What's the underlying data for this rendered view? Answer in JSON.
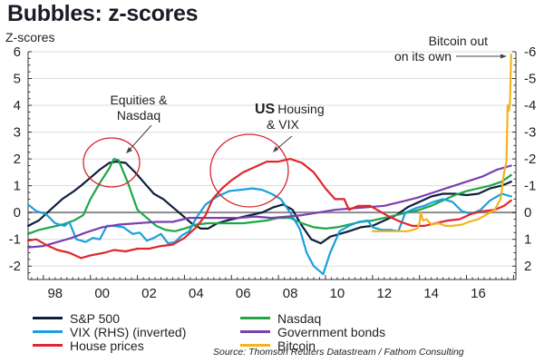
{
  "chart_data": {
    "type": "line",
    "title": "Bubbles: z-scores",
    "ylabel": "Z-scores",
    "ylabel_right": "",
    "xlabel": "",
    "ylim": [
      -2.5,
      6
    ],
    "ylim_right": [
      2.5,
      -6
    ],
    "xlim": [
      1997.35,
      2018.1
    ],
    "yticks": [
      6,
      5,
      4,
      3,
      2,
      1,
      0,
      -1,
      -2
    ],
    "yticks_right": [
      "-6",
      "-5",
      "-4",
      "-3",
      "-2",
      "-1",
      "0",
      "1",
      "2"
    ],
    "xticks": [
      {
        "label": "98",
        "x": 1998.5
      },
      {
        "label": "00",
        "x": 2000.5
      },
      {
        "label": "02",
        "x": 2002.5
      },
      {
        "label": "04",
        "x": 2004.5
      },
      {
        "label": "06",
        "x": 2006.5
      },
      {
        "label": "08",
        "x": 2008.5
      },
      {
        "label": "10",
        "x": 2010.5
      },
      {
        "label": "12",
        "x": 2012.5
      },
      {
        "label": "14",
        "x": 2014.5
      },
      {
        "label": "16",
        "x": 2016.5
      }
    ],
    "grid": true,
    "legend_position": "bottom",
    "source": "Source: Thomson Reuters Datastream / Fathom Consulting",
    "series": [
      {
        "name": "S&P 500",
        "color": "#0f1f3d",
        "points": [
          [
            1997.35,
            -0.5
          ],
          [
            1997.8,
            -0.3
          ],
          [
            1998.3,
            0.1
          ],
          [
            1998.8,
            0.5
          ],
          [
            1999.3,
            0.8
          ],
          [
            1999.6,
            1.0
          ],
          [
            2000.0,
            1.3
          ],
          [
            2000.4,
            1.6
          ],
          [
            2000.8,
            1.85
          ],
          [
            2001.1,
            1.9
          ],
          [
            2001.5,
            1.85
          ],
          [
            2001.9,
            1.5
          ],
          [
            2002.3,
            1.1
          ],
          [
            2002.7,
            0.7
          ],
          [
            2003.1,
            0.5
          ],
          [
            2003.5,
            0.2
          ],
          [
            2003.9,
            -0.1
          ],
          [
            2004.3,
            -0.4
          ],
          [
            2004.7,
            -0.6
          ],
          [
            2005.0,
            -0.6
          ],
          [
            2005.4,
            -0.4
          ],
          [
            2005.8,
            -0.3
          ],
          [
            2006.3,
            -0.2
          ],
          [
            2006.8,
            -0.1
          ],
          [
            2007.3,
            0.0
          ],
          [
            2007.8,
            0.2
          ],
          [
            2008.2,
            0.3
          ],
          [
            2008.6,
            0.1
          ],
          [
            2009.0,
            -0.5
          ],
          [
            2009.4,
            -1.0
          ],
          [
            2009.8,
            -1.15
          ],
          [
            2010.2,
            -0.9
          ],
          [
            2010.6,
            -0.8
          ],
          [
            2011.0,
            -0.7
          ],
          [
            2011.5,
            -0.55
          ],
          [
            2012.0,
            -0.5
          ],
          [
            2012.5,
            -0.3
          ],
          [
            2013.0,
            -0.1
          ],
          [
            2013.5,
            0.2
          ],
          [
            2014.0,
            0.4
          ],
          [
            2014.5,
            0.6
          ],
          [
            2015.0,
            0.7
          ],
          [
            2015.5,
            0.7
          ],
          [
            2016.0,
            0.65
          ],
          [
            2016.5,
            0.7
          ],
          [
            2017.0,
            0.9
          ],
          [
            2017.5,
            1.0
          ],
          [
            2017.9,
            1.15
          ]
        ]
      },
      {
        "name": "Nasdaq",
        "color": "#1fa64a",
        "points": [
          [
            1997.35,
            -0.8
          ],
          [
            1997.8,
            -0.65
          ],
          [
            1998.3,
            -0.55
          ],
          [
            1998.8,
            -0.45
          ],
          [
            1999.3,
            -0.3
          ],
          [
            1999.7,
            -0.1
          ],
          [
            2000.0,
            0.5
          ],
          [
            2000.4,
            1.1
          ],
          [
            2000.8,
            1.65
          ],
          [
            2001.0,
            2.0
          ],
          [
            2001.2,
            1.95
          ],
          [
            2001.6,
            1.1
          ],
          [
            2002.0,
            0.1
          ],
          [
            2002.4,
            -0.2
          ],
          [
            2002.8,
            -0.5
          ],
          [
            2003.2,
            -0.65
          ],
          [
            2003.6,
            -0.7
          ],
          [
            2004.0,
            -0.6
          ],
          [
            2004.5,
            -0.45
          ],
          [
            2005.0,
            -0.4
          ],
          [
            2005.5,
            -0.4
          ],
          [
            2006.0,
            -0.4
          ],
          [
            2006.5,
            -0.4
          ],
          [
            2007.0,
            -0.35
          ],
          [
            2007.5,
            -0.3
          ],
          [
            2008.0,
            -0.2
          ],
          [
            2008.5,
            -0.2
          ],
          [
            2009.0,
            -0.4
          ],
          [
            2009.5,
            -0.55
          ],
          [
            2010.0,
            -0.6
          ],
          [
            2010.5,
            -0.55
          ],
          [
            2011.0,
            -0.45
          ],
          [
            2011.5,
            -0.35
          ],
          [
            2012.0,
            -0.3
          ],
          [
            2012.5,
            -0.2
          ],
          [
            2013.0,
            -0.1
          ],
          [
            2013.5,
            0.0
          ],
          [
            2014.0,
            0.1
          ],
          [
            2014.5,
            0.25
          ],
          [
            2015.0,
            0.45
          ],
          [
            2015.5,
            0.65
          ],
          [
            2016.0,
            0.8
          ],
          [
            2016.5,
            0.9
          ],
          [
            2017.0,
            1.0
          ],
          [
            2017.5,
            1.15
          ],
          [
            2017.9,
            1.4
          ]
        ]
      },
      {
        "name": "VIX (RHS) (inverted)",
        "color": "#1aa0dc",
        "points": [
          [
            1997.35,
            0.3
          ],
          [
            1997.7,
            0.05
          ],
          [
            1998.1,
            -0.05
          ],
          [
            1998.5,
            -0.4
          ],
          [
            1998.9,
            -0.5
          ],
          [
            1999.1,
            -0.35
          ],
          [
            1999.4,
            -1.0
          ],
          [
            1999.8,
            -1.1
          ],
          [
            2000.1,
            -0.95
          ],
          [
            2000.4,
            -1.0
          ],
          [
            2000.7,
            -0.5
          ],
          [
            2001.0,
            -0.5
          ],
          [
            2001.4,
            -0.55
          ],
          [
            2001.8,
            -0.8
          ],
          [
            2002.1,
            -0.75
          ],
          [
            2002.4,
            -1.05
          ],
          [
            2002.7,
            -0.95
          ],
          [
            2003.0,
            -0.8
          ],
          [
            2003.3,
            -1.15
          ],
          [
            2003.6,
            -1.1
          ],
          [
            2003.9,
            -0.85
          ],
          [
            2004.2,
            -0.7
          ],
          [
            2004.5,
            -0.2
          ],
          [
            2004.9,
            0.3
          ],
          [
            2005.4,
            0.6
          ],
          [
            2005.9,
            0.8
          ],
          [
            2006.4,
            0.85
          ],
          [
            2006.9,
            0.9
          ],
          [
            2007.3,
            0.85
          ],
          [
            2007.7,
            0.7
          ],
          [
            2008.1,
            0.5
          ],
          [
            2008.5,
            0.0
          ],
          [
            2008.9,
            -0.6
          ],
          [
            2009.2,
            -1.5
          ],
          [
            2009.5,
            -2.0
          ],
          [
            2009.9,
            -2.3
          ],
          [
            2010.2,
            -1.5
          ],
          [
            2010.6,
            -0.7
          ],
          [
            2011.0,
            -0.5
          ],
          [
            2011.4,
            -0.35
          ],
          [
            2011.8,
            -0.3
          ],
          [
            2012.0,
            -0.55
          ],
          [
            2012.4,
            -0.65
          ],
          [
            2012.8,
            -0.65
          ],
          [
            2013.1,
            -0.7
          ],
          [
            2013.4,
            0.0
          ],
          [
            2013.8,
            0.15
          ],
          [
            2014.2,
            0.25
          ],
          [
            2014.6,
            0.4
          ],
          [
            2015.0,
            0.5
          ],
          [
            2015.4,
            0.4
          ],
          [
            2015.8,
            0.05
          ],
          [
            2016.2,
            -0.05
          ],
          [
            2016.6,
            0.1
          ],
          [
            2017.0,
            0.45
          ],
          [
            2017.5,
            0.7
          ],
          [
            2017.9,
            0.6
          ]
        ]
      },
      {
        "name": "Government bonds",
        "color": "#7a3fb0",
        "points": [
          [
            1997.35,
            -1.3
          ],
          [
            1998.0,
            -1.25
          ],
          [
            1998.6,
            -1.1
          ],
          [
            1999.2,
            -0.95
          ],
          [
            1999.8,
            -0.75
          ],
          [
            2000.5,
            -0.55
          ],
          [
            2001.2,
            -0.45
          ],
          [
            2002.0,
            -0.4
          ],
          [
            2002.8,
            -0.35
          ],
          [
            2003.5,
            -0.35
          ],
          [
            2004.2,
            -0.2
          ],
          [
            2004.9,
            -0.2
          ],
          [
            2005.6,
            -0.2
          ],
          [
            2006.3,
            -0.2
          ],
          [
            2007.0,
            -0.15
          ],
          [
            2007.7,
            -0.2
          ],
          [
            2008.4,
            -0.15
          ],
          [
            2009.0,
            -0.1
          ],
          [
            2009.7,
            0.0
          ],
          [
            2010.4,
            0.1
          ],
          [
            2011.1,
            0.15
          ],
          [
            2011.8,
            0.2
          ],
          [
            2012.5,
            0.25
          ],
          [
            2013.2,
            0.4
          ],
          [
            2013.9,
            0.55
          ],
          [
            2014.6,
            0.75
          ],
          [
            2015.3,
            0.95
          ],
          [
            2016.0,
            1.15
          ],
          [
            2016.7,
            1.35
          ],
          [
            2017.3,
            1.6
          ],
          [
            2017.9,
            1.75
          ]
        ]
      },
      {
        "name": "House prices",
        "color": "#e0262e",
        "points": [
          [
            1997.35,
            -1.05
          ],
          [
            1997.7,
            -1.0
          ],
          [
            1998.1,
            -1.2
          ],
          [
            1998.6,
            -1.4
          ],
          [
            1999.1,
            -1.5
          ],
          [
            1999.6,
            -1.7
          ],
          [
            2000.0,
            -1.6
          ],
          [
            2000.6,
            -1.5
          ],
          [
            2001.0,
            -1.4
          ],
          [
            2001.5,
            -1.45
          ],
          [
            2002.0,
            -1.35
          ],
          [
            2002.5,
            -1.35
          ],
          [
            2003.0,
            -1.25
          ],
          [
            2003.5,
            -1.2
          ],
          [
            2004.0,
            -0.95
          ],
          [
            2004.5,
            -0.55
          ],
          [
            2004.9,
            -0.1
          ],
          [
            2005.2,
            0.5
          ],
          [
            2005.6,
            0.9
          ],
          [
            2006.0,
            1.2
          ],
          [
            2006.5,
            1.5
          ],
          [
            2007.0,
            1.7
          ],
          [
            2007.5,
            1.9
          ],
          [
            2008.0,
            1.9
          ],
          [
            2008.5,
            2.0
          ],
          [
            2009.0,
            1.85
          ],
          [
            2009.5,
            1.5
          ],
          [
            2010.0,
            0.9
          ],
          [
            2010.4,
            0.5
          ],
          [
            2010.8,
            0.5
          ],
          [
            2011.0,
            0.1
          ],
          [
            2011.4,
            0.25
          ],
          [
            2011.9,
            0.25
          ],
          [
            2012.3,
            0.05
          ],
          [
            2012.7,
            -0.15
          ],
          [
            2013.2,
            -0.35
          ],
          [
            2013.7,
            -0.5
          ],
          [
            2014.2,
            -0.5
          ],
          [
            2014.7,
            -0.4
          ],
          [
            2015.2,
            -0.3
          ],
          [
            2015.7,
            -0.25
          ],
          [
            2016.2,
            -0.05
          ],
          [
            2016.7,
            0.05
          ],
          [
            2017.2,
            0.1
          ],
          [
            2017.6,
            0.25
          ],
          [
            2017.9,
            0.45
          ]
        ]
      },
      {
        "name": "Bitcoin",
        "color": "#f5b21c",
        "points": [
          [
            2012.0,
            -0.7
          ],
          [
            2012.5,
            -0.7
          ],
          [
            2013.0,
            -0.7
          ],
          [
            2013.5,
            -0.7
          ],
          [
            2013.9,
            -0.6
          ],
          [
            2014.0,
            -0.4
          ],
          [
            2014.05,
            0.0
          ],
          [
            2014.15,
            -0.3
          ],
          [
            2014.3,
            -0.25
          ],
          [
            2014.5,
            -0.45
          ],
          [
            2014.8,
            -0.4
          ],
          [
            2015.1,
            -0.5
          ],
          [
            2015.4,
            -0.5
          ],
          [
            2015.8,
            -0.45
          ],
          [
            2016.1,
            -0.35
          ],
          [
            2016.5,
            -0.25
          ],
          [
            2016.9,
            -0.05
          ],
          [
            2017.2,
            0.1
          ],
          [
            2017.45,
            0.5
          ],
          [
            2017.6,
            1.5
          ],
          [
            2017.7,
            1.9
          ],
          [
            2017.75,
            4.0
          ],
          [
            2017.8,
            3.8
          ],
          [
            2017.85,
            4.1
          ],
          [
            2017.9,
            5.9
          ]
        ]
      }
    ],
    "annotations": [
      {
        "text_lines": [
          "Equities &",
          "Nasdaq"
        ]
      },
      {
        "bold_part": "US",
        "text_lines": [
          "Housing",
          "& VIX"
        ]
      },
      {
        "text_lines": [
          "Bitcoin out",
          "on its own"
        ]
      }
    ]
  }
}
